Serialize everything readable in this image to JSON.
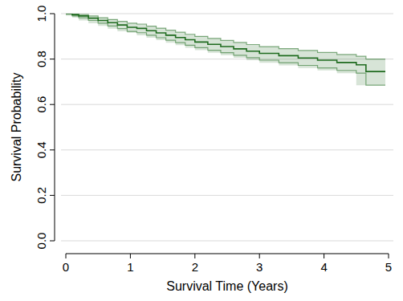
{
  "chart_data": {
    "type": "line",
    "x_label": "Survival Time (Years)",
    "y_label": "Survival Probability",
    "x": [
      0,
      0.1,
      0.2,
      0.35,
      0.5,
      0.65,
      0.8,
      0.95,
      1.1,
      1.25,
      1.4,
      1.55,
      1.7,
      1.85,
      2.0,
      2.2,
      2.4,
      2.6,
      2.8,
      3.0,
      3.3,
      3.6,
      3.9,
      4.2,
      4.5,
      4.65,
      4.95
    ],
    "series": [
      {
        "color": "#1f6b1f",
        "line_style": "step",
        "values": [
          1.0,
          0.995,
          0.99,
          0.98,
          0.97,
          0.96,
          0.95,
          0.94,
          0.935,
          0.925,
          0.915,
          0.905,
          0.895,
          0.885,
          0.875,
          0.865,
          0.855,
          0.845,
          0.835,
          0.825,
          0.815,
          0.805,
          0.795,
          0.785,
          0.775,
          0.745,
          0.745
        ],
        "lower": [
          1.0,
          0.99,
          0.982,
          0.97,
          0.958,
          0.946,
          0.934,
          0.922,
          0.916,
          0.905,
          0.894,
          0.883,
          0.872,
          0.861,
          0.85,
          0.839,
          0.828,
          0.817,
          0.806,
          0.795,
          0.784,
          0.772,
          0.761,
          0.75,
          0.738,
          0.685,
          0.685
        ],
        "upper": [
          1.0,
          0.999,
          0.996,
          0.99,
          0.982,
          0.974,
          0.966,
          0.958,
          0.954,
          0.945,
          0.936,
          0.927,
          0.918,
          0.909,
          0.9,
          0.891,
          0.882,
          0.873,
          0.864,
          0.855,
          0.846,
          0.838,
          0.829,
          0.82,
          0.812,
          0.8,
          0.8
        ]
      }
    ],
    "xlim": [
      0,
      5
    ],
    "xticks": [
      0,
      1,
      2,
      3,
      4,
      5
    ],
    "ylim": [
      0,
      1
    ],
    "yticks": [
      {
        "value": 0,
        "label": "0.0"
      },
      0.2,
      0.4,
      0.6,
      0.8,
      {
        "value": 1,
        "label": "1.0"
      }
    ],
    "grid": true
  }
}
